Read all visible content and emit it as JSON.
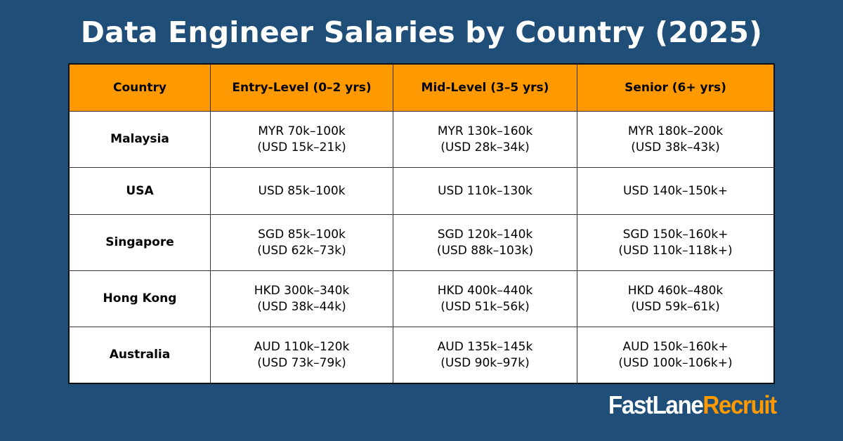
{
  "title": "Data Engineer Salaries by Country (2025)",
  "colors": {
    "background": "#1f4e79",
    "header": "#ff9900",
    "logo_accent": "#ff9900"
  },
  "table": {
    "headers": [
      "Country",
      "Entry-Level (0–2 yrs)",
      "Mid-Level (3–5 yrs)",
      "Senior (6+ yrs)"
    ],
    "rows": [
      {
        "country": "Malaysia",
        "cells": [
          [
            "MYR 70k–100k",
            "(USD 15k–21k)"
          ],
          [
            "MYR 130k–160k",
            "(USD 28k–34k)"
          ],
          [
            "MYR 180k–200k",
            "(USD 38k–43k)"
          ]
        ]
      },
      {
        "country": "USA",
        "cells": [
          [
            "USD 85k–100k"
          ],
          [
            "USD 110k–130k"
          ],
          [
            "USD 140k–150k+"
          ]
        ]
      },
      {
        "country": "Singapore",
        "cells": [
          [
            "SGD 85k–100k",
            "(USD 62k–73k)"
          ],
          [
            "SGD 120k–140k",
            "(USD 88k–103k)"
          ],
          [
            "SGD 150k–160k+",
            "(USD 110k–118k+)"
          ]
        ]
      },
      {
        "country": "Hong Kong",
        "cells": [
          [
            "HKD 300k–340k",
            "(USD 38k–44k)"
          ],
          [
            "HKD 400k–440k",
            "(USD 51k–56k)"
          ],
          [
            "HKD 460k–480k",
            "(USD 59k–61k)"
          ]
        ]
      },
      {
        "country": "Australia",
        "cells": [
          [
            "AUD 110k–120k",
            "(USD 73k–79k)"
          ],
          [
            "AUD 135k–145k",
            "(USD 90k–97k)"
          ],
          [
            "AUD 150k–160k+",
            "(USD 100k–106k+)"
          ]
        ]
      }
    ]
  },
  "logo": {
    "part1": "FastLane",
    "part2": "Recruit"
  }
}
